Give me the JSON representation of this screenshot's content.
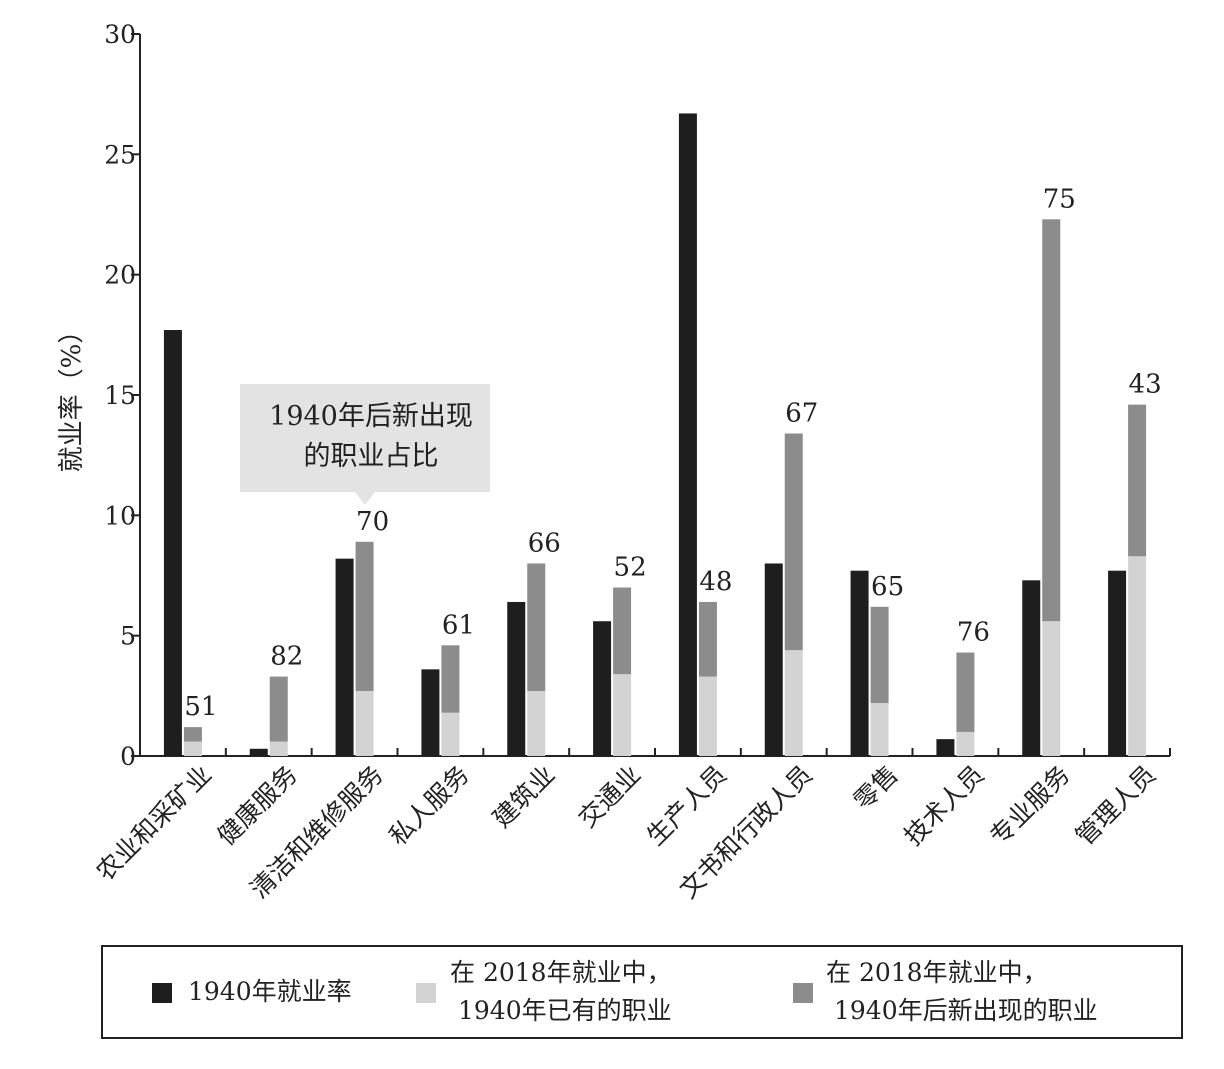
{
  "chart_data": {
    "type": "bar",
    "ylabel": "就业率（%）",
    "ylim": [
      0,
      30
    ],
    "yticks": [
      0,
      5,
      10,
      15,
      20,
      25,
      30
    ],
    "categories": [
      "农业和采矿业",
      "健康服务",
      "清洁和维修服务",
      "私人服务",
      "建筑业",
      "交通业",
      "生产人员",
      "文书和行政人员",
      "零售",
      "技术人员",
      "专业服务",
      "管理人员"
    ],
    "series": [
      {
        "name": "1940年就业率",
        "color": "#1e1e1e",
        "values": [
          17.7,
          0.3,
          8.2,
          3.6,
          6.4,
          5.6,
          26.7,
          8.0,
          7.7,
          0.7,
          7.3,
          7.7
        ]
      },
      {
        "name": "在 2018年就业中，1940年已有的职业",
        "color": "#d3d3d3",
        "values": [
          0.6,
          0.6,
          2.7,
          1.8,
          2.7,
          3.4,
          3.3,
          4.4,
          2.2,
          1.0,
          5.6,
          8.3
        ]
      },
      {
        "name": "在 2018年就业中，1940年后新出现的职业",
        "color": "#8c8c8c",
        "values": [
          0.6,
          2.7,
          6.2,
          2.8,
          5.3,
          3.6,
          3.1,
          9.0,
          4.0,
          3.3,
          16.7,
          6.3
        ]
      }
    ],
    "new_share_labels": [
      "51",
      "82",
      "70",
      "61",
      "66",
      "52",
      "48",
      "67",
      "65",
      "76",
      "75",
      "43"
    ],
    "callout": {
      "line1": "1940年后新出现",
      "line2": "的职业占比"
    },
    "legend": [
      {
        "line1": "1940年就业率",
        "line2": ""
      },
      {
        "line1": "在 2018年就业中，",
        "line2": "1940年已有的职业"
      },
      {
        "line1": "在 2018年就业中，",
        "line2": "1940年后新出现的职业"
      }
    ]
  }
}
